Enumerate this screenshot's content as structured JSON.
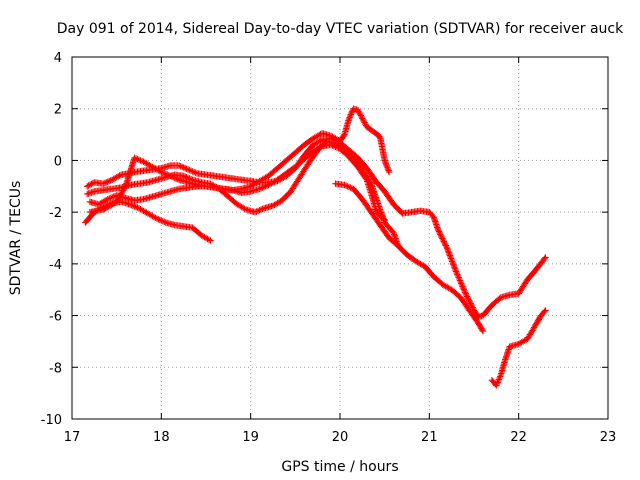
{
  "chart_data": {
    "type": "scatter",
    "title": "Day 091 of 2014, Sidereal Day-to-day VTEC variation (SDTVAR) for receiver auck",
    "xlabel": "GPS time / hours",
    "ylabel": "SDTVAR / TECUs",
    "xlim": [
      17,
      23
    ],
    "ylim": [
      -10,
      4
    ],
    "xticks": [
      "17",
      "18",
      "19",
      "20",
      "21",
      "22",
      "23"
    ],
    "yticks": [
      "4",
      "2",
      "0",
      "-2",
      "-4",
      "-6",
      "-8",
      "-10"
    ],
    "grid": true,
    "marker": "+",
    "color": "#ff0000",
    "series": [
      {
        "name": "trace-1",
        "points": [
          [
            17.17,
            -1.0
          ],
          [
            17.25,
            -0.85
          ],
          [
            17.35,
            -0.9
          ],
          [
            17.45,
            -0.75
          ],
          [
            17.55,
            -0.55
          ],
          [
            17.65,
            -0.5
          ],
          [
            17.7,
            -0.45
          ],
          [
            17.8,
            -0.4
          ],
          [
            17.9,
            -0.35
          ],
          [
            18.0,
            -0.3
          ],
          [
            18.1,
            -0.2
          ],
          [
            18.2,
            -0.2
          ],
          [
            18.3,
            -0.35
          ],
          [
            18.4,
            -0.5
          ],
          [
            18.5,
            -0.55
          ],
          [
            18.6,
            -0.6
          ],
          [
            18.7,
            -0.65
          ],
          [
            18.8,
            -0.7
          ],
          [
            18.9,
            -0.75
          ],
          [
            19.0,
            -0.8
          ],
          [
            19.1,
            -0.85
          ],
          [
            19.2,
            -0.85
          ],
          [
            19.3,
            -0.8
          ],
          [
            19.4,
            -0.6
          ],
          [
            19.5,
            -0.3
          ],
          [
            19.6,
            0.2
          ],
          [
            19.7,
            0.6
          ],
          [
            19.8,
            0.8
          ],
          [
            19.9,
            0.85
          ],
          [
            20.0,
            0.7
          ],
          [
            20.1,
            0.4
          ],
          [
            20.2,
            0.1
          ],
          [
            20.3,
            -0.3
          ],
          [
            20.4,
            -0.8
          ],
          [
            20.5,
            -1.2
          ],
          [
            20.6,
            -1.7
          ],
          [
            20.7,
            -2.05
          ],
          [
            20.8,
            -2.0
          ],
          [
            20.9,
            -1.95
          ],
          [
            21.0,
            -2.0
          ],
          [
            21.05,
            -2.2
          ],
          [
            21.1,
            -2.7
          ],
          [
            21.2,
            -3.4
          ],
          [
            21.3,
            -4.3
          ],
          [
            21.4,
            -5.1
          ],
          [
            21.5,
            -5.8
          ],
          [
            21.55,
            -6.05
          ],
          [
            21.6,
            -6.0
          ],
          [
            21.7,
            -5.6
          ],
          [
            21.8,
            -5.3
          ],
          [
            21.9,
            -5.2
          ],
          [
            22.0,
            -5.15
          ],
          [
            22.1,
            -4.6
          ],
          [
            22.2,
            -4.2
          ],
          [
            22.3,
            -3.75
          ]
        ]
      },
      {
        "name": "trace-2",
        "points": [
          [
            17.17,
            -1.3
          ],
          [
            17.25,
            -1.2
          ],
          [
            17.35,
            -1.15
          ],
          [
            17.45,
            -1.1
          ],
          [
            17.55,
            -1.05
          ],
          [
            17.65,
            -0.95
          ],
          [
            17.75,
            -0.9
          ],
          [
            17.85,
            -0.85
          ],
          [
            17.95,
            -0.75
          ],
          [
            18.05,
            -0.65
          ],
          [
            18.15,
            -0.55
          ],
          [
            18.25,
            -0.6
          ],
          [
            18.35,
            -0.75
          ],
          [
            18.45,
            -0.85
          ],
          [
            18.55,
            -0.9
          ],
          [
            18.65,
            -1.1
          ],
          [
            18.75,
            -1.4
          ],
          [
            18.85,
            -1.7
          ],
          [
            18.95,
            -1.9
          ],
          [
            19.05,
            -2.0
          ],
          [
            19.15,
            -1.85
          ],
          [
            19.25,
            -1.75
          ],
          [
            19.35,
            -1.55
          ],
          [
            19.45,
            -1.2
          ],
          [
            19.55,
            -0.65
          ],
          [
            19.65,
            -0.1
          ],
          [
            19.75,
            0.4
          ],
          [
            19.85,
            0.75
          ],
          [
            19.95,
            0.65
          ],
          [
            20.05,
            0.45
          ],
          [
            20.15,
            0.2
          ],
          [
            20.25,
            -0.35
          ],
          [
            20.35,
            -0.9
          ],
          [
            20.45,
            -1.9
          ],
          [
            20.5,
            -2.4
          ],
          [
            20.55,
            -2.6
          ],
          [
            20.6,
            -2.8
          ],
          [
            20.65,
            -3.3
          ]
        ]
      },
      {
        "name": "trace-3",
        "points": [
          [
            17.2,
            -1.6
          ],
          [
            17.3,
            -1.7
          ],
          [
            17.4,
            -1.5
          ],
          [
            17.5,
            -1.35
          ],
          [
            17.6,
            -1.45
          ],
          [
            17.7,
            -1.55
          ],
          [
            17.8,
            -1.5
          ],
          [
            17.9,
            -1.4
          ],
          [
            18.0,
            -1.3
          ],
          [
            18.1,
            -1.2
          ],
          [
            18.2,
            -1.1
          ],
          [
            18.3,
            -1.05
          ],
          [
            18.4,
            -1.0
          ],
          [
            18.5,
            -1.0
          ],
          [
            18.6,
            -1.05
          ],
          [
            18.7,
            -1.1
          ],
          [
            18.8,
            -1.15
          ],
          [
            18.9,
            -1.1
          ],
          [
            19.0,
            -1.0
          ],
          [
            19.1,
            -0.8
          ],
          [
            19.2,
            -0.6
          ],
          [
            19.3,
            -0.3
          ],
          [
            19.4,
            0.0
          ],
          [
            19.5,
            0.3
          ],
          [
            19.6,
            0.6
          ],
          [
            19.7,
            0.85
          ],
          [
            19.8,
            1.05
          ],
          [
            19.9,
            0.95
          ],
          [
            20.0,
            0.75
          ],
          [
            20.05,
            1.0
          ],
          [
            20.1,
            1.6
          ],
          [
            20.15,
            2.0
          ],
          [
            20.2,
            1.95
          ],
          [
            20.3,
            1.3
          ],
          [
            20.4,
            1.05
          ],
          [
            20.45,
            0.9
          ],
          [
            20.5,
            0.0
          ],
          [
            20.55,
            -0.45
          ]
        ]
      },
      {
        "name": "trace-4",
        "points": [
          [
            17.15,
            -2.4
          ],
          [
            17.25,
            -2.0
          ],
          [
            17.35,
            -1.8
          ],
          [
            17.45,
            -1.65
          ],
          [
            17.55,
            -1.6
          ],
          [
            17.65,
            -1.7
          ],
          [
            17.75,
            -1.85
          ],
          [
            17.85,
            -2.05
          ],
          [
            17.95,
            -2.25
          ],
          [
            18.05,
            -2.4
          ],
          [
            18.15,
            -2.5
          ],
          [
            18.25,
            -2.55
          ],
          [
            18.35,
            -2.6
          ],
          [
            18.45,
            -2.9
          ],
          [
            18.55,
            -3.1
          ]
        ]
      },
      {
        "name": "trace-5",
        "points": [
          [
            17.2,
            -2.0
          ],
          [
            17.35,
            -1.9
          ],
          [
            17.5,
            -1.6
          ],
          [
            17.6,
            -1.0
          ],
          [
            17.7,
            0.1
          ],
          [
            17.8,
            -0.05
          ],
          [
            17.9,
            -0.25
          ],
          [
            18.0,
            -0.45
          ],
          [
            18.1,
            -0.6
          ],
          [
            18.2,
            -0.75
          ],
          [
            18.3,
            -0.85
          ],
          [
            18.4,
            -0.95
          ],
          [
            18.5,
            -1.0
          ],
          [
            18.6,
            -1.05
          ],
          [
            18.7,
            -1.1
          ],
          [
            18.8,
            -1.15
          ],
          [
            18.9,
            -1.25
          ],
          [
            19.0,
            -1.2
          ],
          [
            19.1,
            -1.1
          ],
          [
            19.2,
            -0.95
          ],
          [
            19.3,
            -0.75
          ],
          [
            19.4,
            -0.5
          ],
          [
            19.5,
            -0.25
          ],
          [
            19.6,
            0.05
          ],
          [
            19.7,
            0.35
          ],
          [
            19.8,
            0.55
          ],
          [
            19.9,
            0.6
          ],
          [
            20.0,
            0.45
          ],
          [
            20.1,
            0.15
          ],
          [
            20.2,
            -0.25
          ],
          [
            20.3,
            -0.75
          ],
          [
            20.35,
            -1.3
          ],
          [
            20.4,
            -1.9
          ],
          [
            20.45,
            -2.15
          ],
          [
            20.5,
            -2.3
          ]
        ]
      },
      {
        "name": "trace-6",
        "points": [
          [
            19.95,
            -0.9
          ],
          [
            20.05,
            -0.95
          ],
          [
            20.15,
            -1.1
          ],
          [
            20.25,
            -1.5
          ],
          [
            20.35,
            -2.0
          ],
          [
            20.45,
            -2.5
          ],
          [
            20.55,
            -3.0
          ],
          [
            20.65,
            -3.3
          ],
          [
            20.75,
            -3.65
          ],
          [
            20.85,
            -3.9
          ],
          [
            20.95,
            -4.1
          ],
          [
            21.05,
            -4.5
          ],
          [
            21.15,
            -4.8
          ],
          [
            21.25,
            -5.0
          ],
          [
            21.35,
            -5.3
          ],
          [
            21.45,
            -5.8
          ],
          [
            21.55,
            -6.3
          ],
          [
            21.6,
            -6.6
          ]
        ]
      },
      {
        "name": "trace-7",
        "points": [
          [
            21.7,
            -8.5
          ],
          [
            21.75,
            -8.7
          ],
          [
            21.8,
            -8.3
          ],
          [
            21.85,
            -7.7
          ],
          [
            21.9,
            -7.2
          ],
          [
            22.0,
            -7.1
          ],
          [
            22.1,
            -6.9
          ],
          [
            22.2,
            -6.3
          ],
          [
            22.25,
            -6.0
          ],
          [
            22.3,
            -5.8
          ]
        ]
      }
    ]
  }
}
